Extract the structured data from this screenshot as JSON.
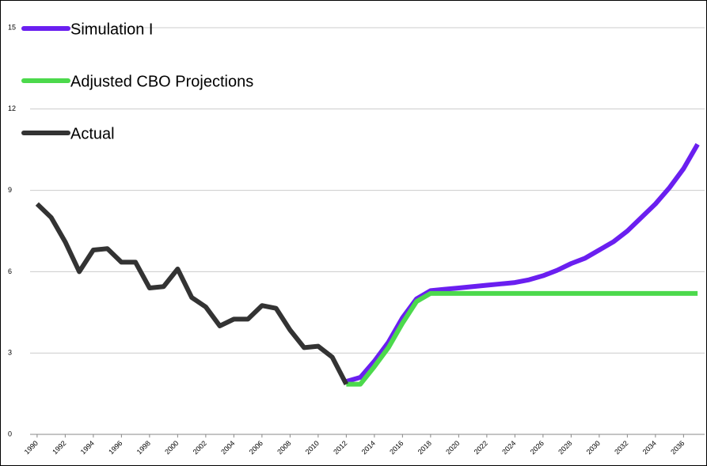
{
  "chart_data": {
    "type": "line",
    "x": [
      1990,
      1991,
      1992,
      1993,
      1994,
      1995,
      1996,
      1997,
      1998,
      1999,
      2000,
      2001,
      2002,
      2003,
      2004,
      2005,
      2006,
      2007,
      2008,
      2009,
      2010,
      2011,
      2012,
      2013,
      2014,
      2015,
      2016,
      2017,
      2018,
      2019,
      2020,
      2021,
      2022,
      2023,
      2024,
      2025,
      2026,
      2027,
      2028,
      2029,
      2030,
      2031,
      2032,
      2033,
      2034,
      2035,
      2036,
      2037
    ],
    "series": [
      {
        "name": "Simulation I",
        "color": "#6a1ff0",
        "values": [
          null,
          null,
          null,
          null,
          null,
          null,
          null,
          null,
          null,
          null,
          null,
          null,
          null,
          null,
          null,
          null,
          null,
          null,
          null,
          null,
          null,
          null,
          1.95,
          2.1,
          2.7,
          3.4,
          4.3,
          5.0,
          5.3,
          5.35,
          5.4,
          5.45,
          5.5,
          5.55,
          5.6,
          5.7,
          5.85,
          6.05,
          6.3,
          6.5,
          6.8,
          7.1,
          7.5,
          8.0,
          8.5,
          9.1,
          9.8,
          10.7
        ]
      },
      {
        "name": "Adjusted CBO Projections",
        "color": "#4cd94c",
        "values": [
          null,
          null,
          null,
          null,
          null,
          null,
          null,
          null,
          null,
          null,
          null,
          null,
          null,
          null,
          null,
          null,
          null,
          null,
          null,
          null,
          null,
          null,
          1.85,
          1.85,
          2.5,
          3.2,
          4.1,
          4.9,
          5.2,
          5.2,
          5.2,
          5.2,
          5.2,
          5.2,
          5.2,
          5.2,
          5.2,
          5.2,
          5.2,
          5.2,
          5.2,
          5.2,
          5.2,
          5.2,
          5.2,
          5.2,
          5.2,
          5.2
        ]
      },
      {
        "name": "Actual",
        "color": "#333333",
        "values": [
          8.5,
          8.0,
          7.1,
          6.0,
          6.8,
          6.85,
          6.35,
          6.35,
          5.4,
          5.45,
          6.1,
          5.05,
          4.7,
          4.0,
          4.25,
          4.25,
          4.75,
          4.65,
          3.85,
          3.2,
          3.25,
          2.85,
          1.85,
          null,
          null,
          null,
          null,
          null,
          null,
          null,
          null,
          null,
          null,
          null,
          null,
          null,
          null,
          null,
          null,
          null,
          null,
          null,
          null,
          null,
          null,
          null,
          null,
          null
        ]
      }
    ],
    "xlim": [
      1989.5,
      2037.5
    ],
    "xticks": [
      1990,
      1992,
      1994,
      1996,
      1998,
      2000,
      2002,
      2004,
      2006,
      2008,
      2010,
      2012,
      2014,
      2016,
      2018,
      2020,
      2022,
      2024,
      2026,
      2028,
      2030,
      2032,
      2034,
      2036
    ],
    "ylim": [
      0,
      15
    ],
    "yticks": [
      0,
      3,
      6,
      9,
      12,
      15
    ],
    "grid": true
  }
}
